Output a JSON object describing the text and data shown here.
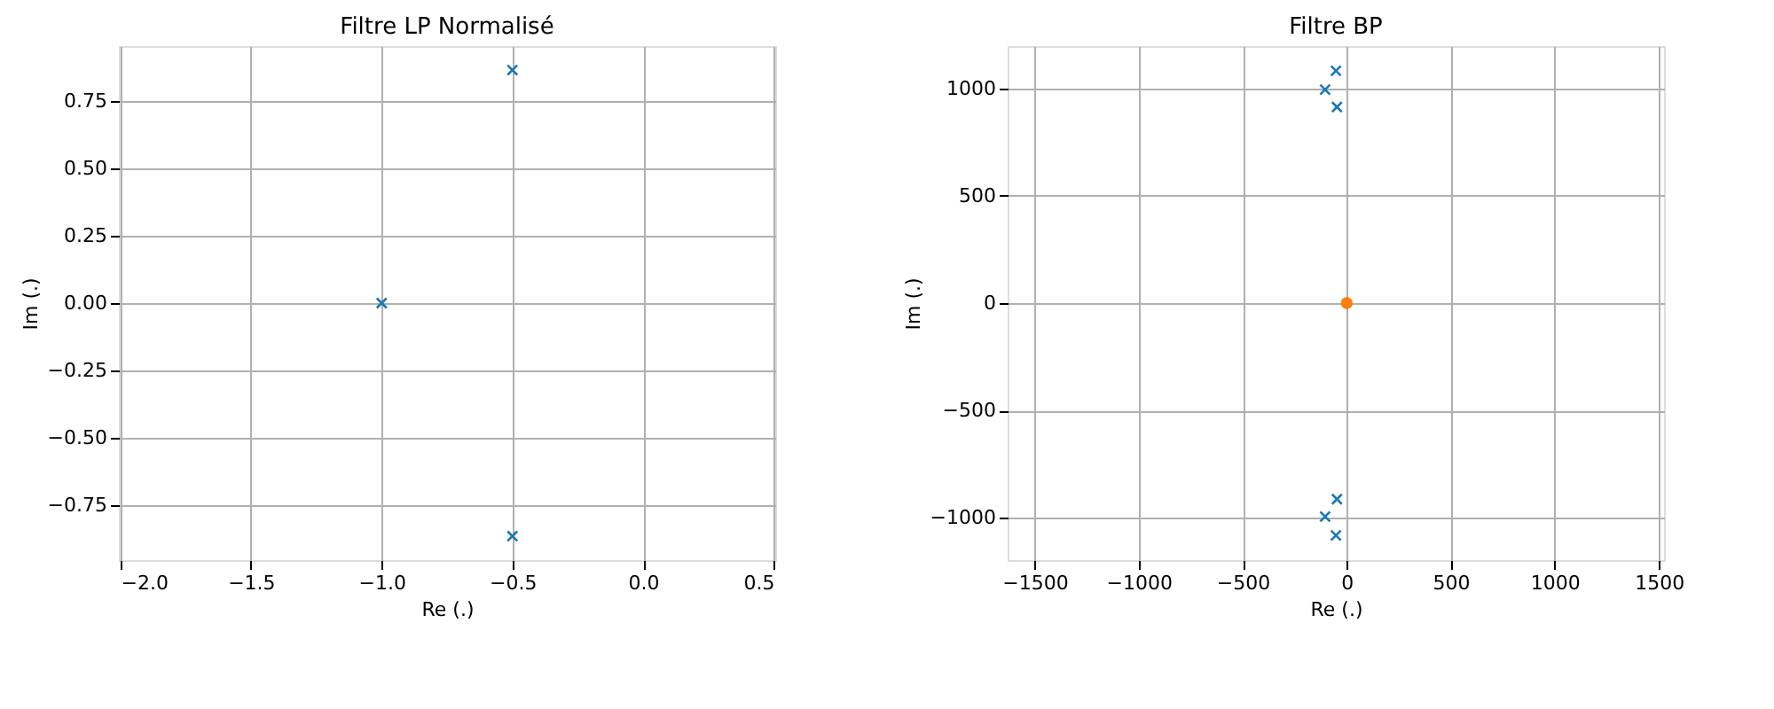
{
  "chart_data": [
    {
      "type": "scatter",
      "title": "Filtre LP Normalisé",
      "xlabel": "Re (.)",
      "ylabel": "Im (.)",
      "xlim": [
        -2.005,
        0.505
      ],
      "ylim": [
        -0.955,
        0.955
      ],
      "xticks": [
        {
          "value": -2.0,
          "label": "−2.0"
        },
        -1.5,
        {
          "value": -1.0,
          "label": "−1.0"
        },
        -0.5,
        {
          "value": 0.0,
          "label": "0.0"
        },
        0.5
      ],
      "yticks": [
        -0.75,
        {
          "value": -0.5,
          "label": "−0.50"
        },
        -0.25,
        {
          "value": 0.0,
          "label": "0.00"
        },
        0.25,
        {
          "value": 0.5,
          "label": "0.50"
        },
        0.75
      ],
      "grid": true,
      "series": [
        {
          "color": "#1f77b4",
          "marker": "cross",
          "x": [
            -0.5,
            -1.0,
            -0.5
          ],
          "values": [
            0.866,
            0.0,
            -0.866
          ]
        }
      ]
    },
    {
      "type": "scatter",
      "title": "Filtre BP",
      "xlabel": "Re (.)",
      "ylabel": "Im (.)",
      "xlim": [
        -1630,
        1525
      ],
      "ylim": [
        -1198,
        1198
      ],
      "xticks": [
        -1500,
        -1000,
        -500,
        0,
        500,
        1000,
        1500
      ],
      "yticks": [
        -1000,
        -500,
        0,
        500,
        1000
      ],
      "grid": true,
      "series": [
        {
          "color": "#1f77b4",
          "marker": "cross",
          "x": [
            -52,
            -104,
            -47,
            -52,
            -104,
            -47
          ],
          "values": [
            1083,
            995,
            914,
            -1083,
            -995,
            -914
          ]
        },
        {
          "color": "#ff7f0e",
          "marker": "circle",
          "x": [
            0
          ],
          "values": [
            0
          ]
        }
      ]
    }
  ]
}
